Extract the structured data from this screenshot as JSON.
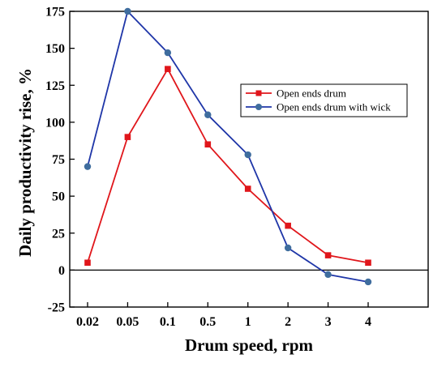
{
  "chart_data": {
    "type": "line",
    "categories": [
      "0.02",
      "0.05",
      "0.1",
      "0.5",
      "1",
      "2",
      "3",
      "4"
    ],
    "series": [
      {
        "name": "Open ends drum",
        "color": "#e0161b",
        "marker": "square",
        "values": [
          5,
          90,
          136,
          85,
          55,
          30,
          10,
          5
        ]
      },
      {
        "name": "Open ends drum with wick",
        "color": "#1f36a8",
        "marker": "circle",
        "values": [
          70,
          175,
          147,
          105,
          78,
          15,
          -3,
          -8
        ]
      }
    ],
    "xlabel": "Drum speed, rpm",
    "ylabel": "Daily productivity rise, %",
    "ylim": [
      -25,
      175
    ],
    "yticks": [
      -25,
      0,
      25,
      50,
      75,
      100,
      125,
      150,
      175
    ],
    "ytick_labels": [
      "-25",
      "0",
      "25",
      "50",
      "75",
      "100",
      "125",
      "150",
      "175"
    ],
    "zero_line": true,
    "grid": false,
    "legend_position": "top-right"
  }
}
